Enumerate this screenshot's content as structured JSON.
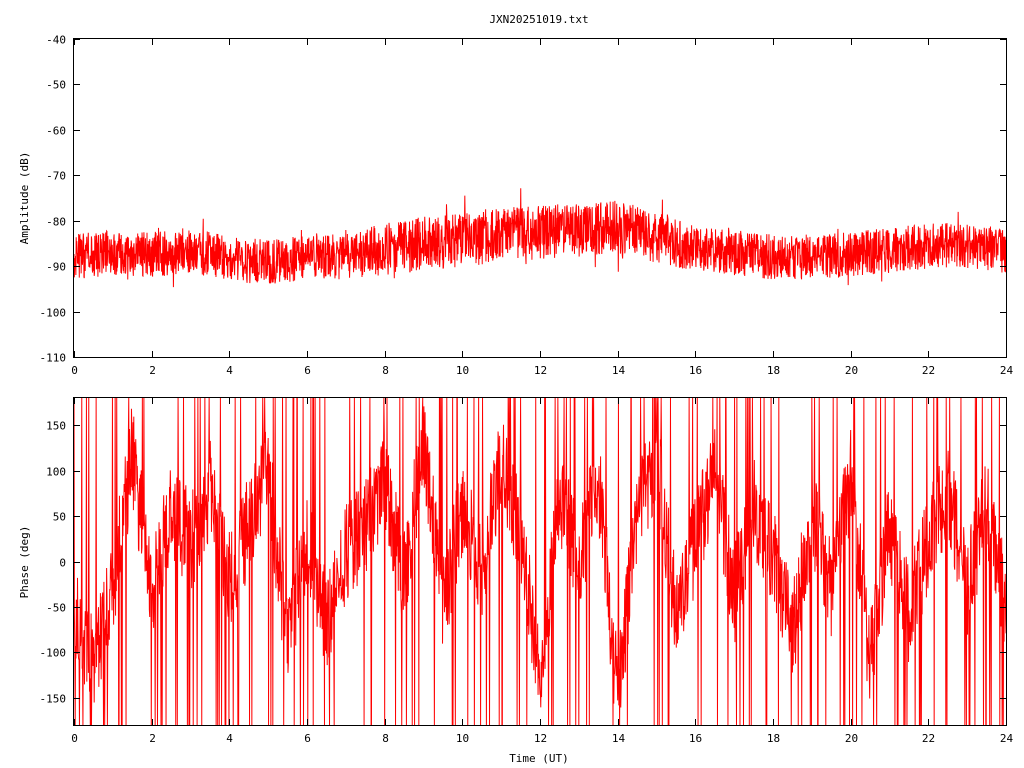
{
  "chart_data": [
    {
      "type": "line",
      "title": "JXN20251019.txt",
      "xlabel": "",
      "ylabel": "Amplitude (dB)",
      "xlim": [
        0,
        24
      ],
      "ylim": [
        -110,
        -40
      ],
      "x_ticks": [
        "0",
        "2",
        "4",
        "6",
        "8",
        "10",
        "12",
        "14",
        "16",
        "18",
        "20",
        "22",
        "24"
      ],
      "y_ticks": [
        "-40",
        "-50",
        "-60",
        "-70",
        "-80",
        "-90",
        "-100",
        "-110"
      ],
      "grid": false,
      "legend": "none",
      "color": "#ff0000",
      "series": [
        {
          "x": [
            0,
            1,
            2,
            3,
            4,
            5,
            6,
            7,
            8,
            9,
            10,
            11,
            12,
            13,
            14,
            15,
            16,
            17,
            18,
            19,
            20,
            21,
            22,
            23,
            24
          ],
          "values": [
            -88,
            -87,
            -87.5,
            -86.5,
            -88.5,
            -89,
            -88,
            -88,
            -86,
            -85,
            -84.5,
            -83,
            -82.5,
            -82,
            -81.5,
            -83.5,
            -86,
            -87,
            -88,
            -88,
            -87.5,
            -86.5,
            -85.5,
            -85.5,
            -86.5
          ],
          "spread": [
            5,
            5,
            5,
            5,
            5,
            5,
            5,
            5,
            6,
            6,
            6,
            6,
            6,
            6,
            6,
            6,
            5,
            5,
            5,
            5,
            5,
            5,
            5,
            5,
            5
          ]
        }
      ]
    },
    {
      "type": "line",
      "title": "",
      "xlabel": "Time (UT)",
      "ylabel": "Phase (deg)",
      "xlim": [
        0,
        24
      ],
      "ylim": [
        -180,
        180
      ],
      "x_ticks": [
        "0",
        "2",
        "4",
        "6",
        "8",
        "10",
        "12",
        "14",
        "16",
        "18",
        "20",
        "22",
        "24"
      ],
      "y_ticks": [
        "150",
        "100",
        "50",
        "0",
        "-50",
        "-100",
        "-150"
      ],
      "grid": false,
      "legend": "none",
      "color": "#ff0000",
      "series": [
        {
          "x": [
            0,
            0.5,
            1,
            1.5,
            2,
            2.5,
            3,
            3.5,
            4,
            4.5,
            5,
            5.5,
            6,
            6.5,
            7,
            7.5,
            8,
            8.5,
            9,
            9.5,
            10,
            10.5,
            11,
            11.5,
            12,
            12.5,
            13,
            13.5,
            14,
            14.5,
            15,
            15.5,
            16,
            16.5,
            17,
            17.5,
            18,
            18.5,
            19,
            19.5,
            20,
            20.5,
            21,
            21.5,
            22,
            22.5,
            23,
            23.5,
            24
          ],
          "values": [
            -60,
            -110,
            -30,
            120,
            -40,
            60,
            20,
            80,
            -20,
            40,
            100,
            -90,
            30,
            -70,
            10,
            40,
            90,
            -20,
            130,
            -50,
            60,
            -10,
            110,
            30,
            -120,
            70,
            0,
            90,
            -150,
            50,
            120,
            -60,
            20,
            100,
            -40,
            60,
            10,
            -80,
            50,
            -30,
            90,
            -110,
            40,
            -60,
            20,
            80,
            -30,
            60,
            -50
          ]
        }
      ]
    }
  ]
}
